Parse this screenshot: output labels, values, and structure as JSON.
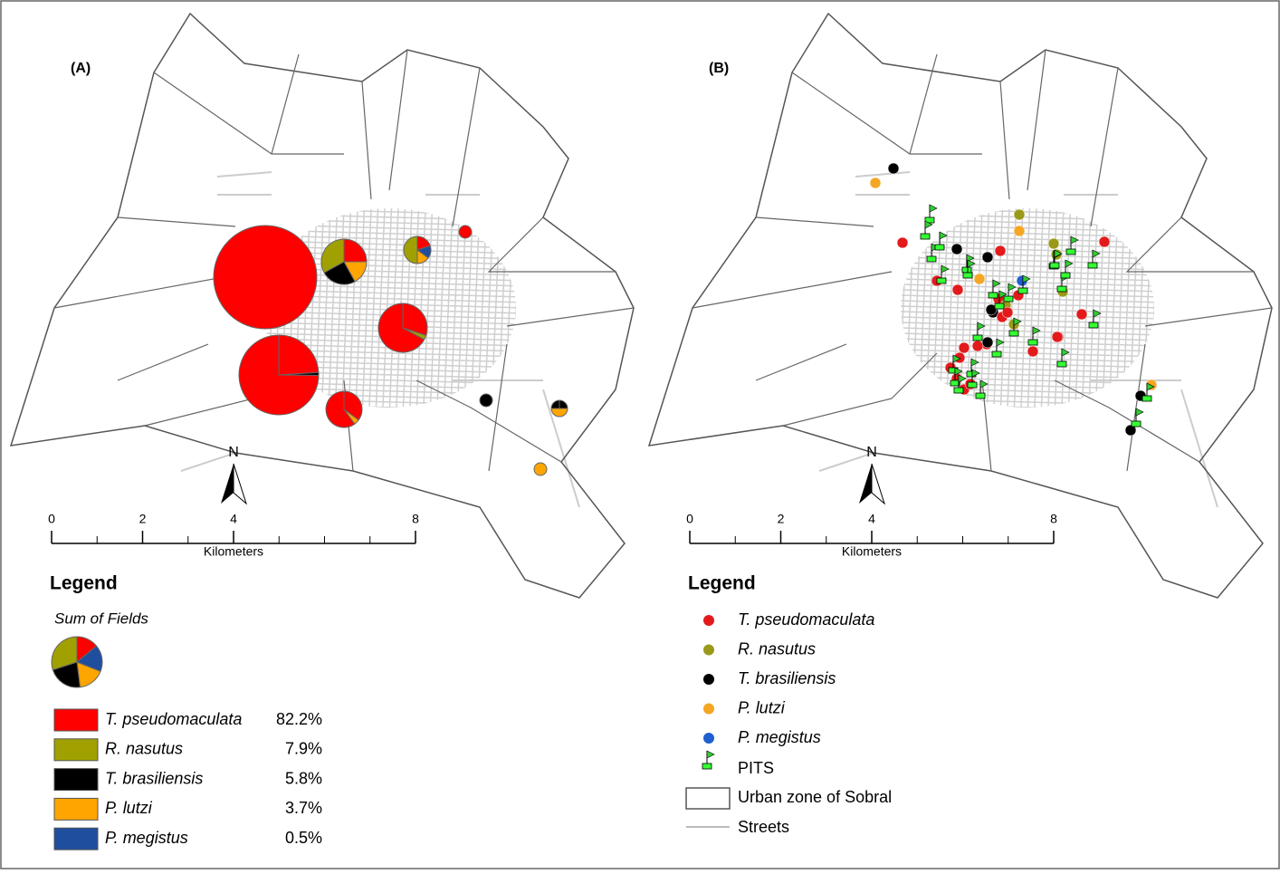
{
  "panels": [
    {
      "label": "(A)",
      "north": "N",
      "scale": {
        "ticks": [
          0,
          2,
          4,
          8
        ],
        "unit": "Kilometers"
      },
      "legend": {
        "title": "Legend",
        "subtitle": "Sum of Fields",
        "items": [
          {
            "name": "T. pseudomaculata",
            "share": "82.2%",
            "color": "#ff0000"
          },
          {
            "name": "R. nasutus",
            "share": "7.9%",
            "color": "#a0a000"
          },
          {
            "name": "T. brasiliensis",
            "share": "5.8%",
            "color": "#000000"
          },
          {
            "name": "P. lutzi",
            "share": "3.7%",
            "color": "#ffa500"
          },
          {
            "name": "P. megistus",
            "share": "0.5%",
            "color": "#1f4e9e"
          }
        ]
      }
    },
    {
      "label": "(B)",
      "north": "N",
      "scale": {
        "ticks": [
          0,
          2,
          4,
          8
        ],
        "unit": "Kilometers"
      },
      "legend": {
        "title": "Legend",
        "items": [
          {
            "name": "T. pseudomaculata",
            "color": "#e31a1c"
          },
          {
            "name": "R. nasutus",
            "color": "#9a9a1a"
          },
          {
            "name": "T. brasiliensis",
            "color": "#000000"
          },
          {
            "name": "P. lutzi",
            "color": "#f5a623"
          },
          {
            "name": "P. megistus",
            "color": "#1f5fd0"
          }
        ],
        "pits": "PITS",
        "zone": "Urban zone of Sobral",
        "streets": "Streets"
      }
    }
  ]
}
